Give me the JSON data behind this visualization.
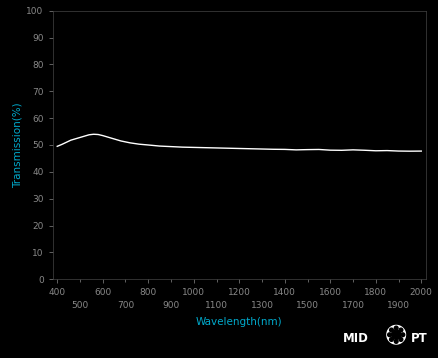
{
  "background_color": "#000000",
  "plot_bg_color": "#000000",
  "line_color": "#ffffff",
  "line_width": 1.0,
  "xlabel": "Wavelength(nm)",
  "ylabel": "Transmission(%)",
  "xlabel_color": "#00aacc",
  "ylabel_color": "#00aacc",
  "tick_label_color": "#888888",
  "xlim": [
    380,
    2020
  ],
  "ylim": [
    0,
    100
  ],
  "xticks_major": [
    400,
    600,
    800,
    1000,
    1200,
    1400,
    1600,
    1800,
    2000
  ],
  "xticks_minor_labeled": [
    500,
    700,
    900,
    1100,
    1300,
    1500,
    1700,
    1900
  ],
  "yticks": [
    0,
    10,
    20,
    30,
    40,
    50,
    60,
    70,
    80,
    90,
    100
  ],
  "wavelengths": [
    400,
    420,
    440,
    460,
    480,
    500,
    520,
    540,
    560,
    580,
    600,
    640,
    680,
    720,
    760,
    800,
    850,
    900,
    950,
    1000,
    1050,
    1100,
    1150,
    1200,
    1250,
    1300,
    1350,
    1400,
    1450,
    1500,
    1550,
    1600,
    1650,
    1700,
    1750,
    1800,
    1850,
    1900,
    1950,
    2000
  ],
  "transmission": [
    49.5,
    50.2,
    51.0,
    51.8,
    52.3,
    52.8,
    53.3,
    53.8,
    54.0,
    53.9,
    53.5,
    52.5,
    51.5,
    50.8,
    50.3,
    50.0,
    49.6,
    49.4,
    49.2,
    49.1,
    49.0,
    48.9,
    48.8,
    48.7,
    48.6,
    48.5,
    48.4,
    48.3,
    48.2,
    48.2,
    48.15,
    48.1,
    48.05,
    48.0,
    47.95,
    47.9,
    47.85,
    47.8,
    47.75,
    47.7
  ],
  "spine_color": "#444444",
  "figsize": [
    4.39,
    3.58
  ],
  "dpi": 100
}
